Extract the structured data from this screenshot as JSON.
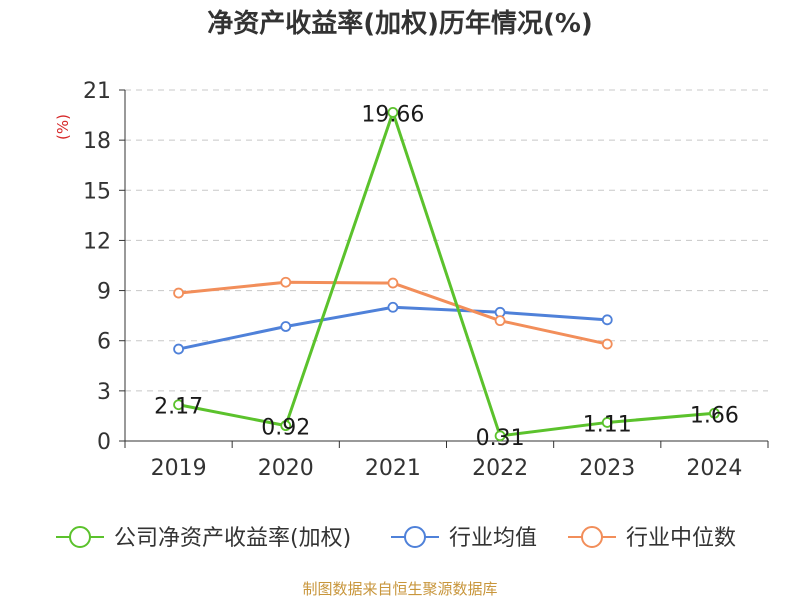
{
  "chart_data": {
    "type": "line",
    "title": "净资产收益率(加权)历年情况(%)",
    "ylabel": "(%)",
    "ylim": [
      0,
      21
    ],
    "yticks": [
      0,
      3,
      6,
      9,
      12,
      15,
      18,
      21
    ],
    "categories": [
      "2019",
      "2020",
      "2021",
      "2022",
      "2023",
      "2024"
    ],
    "grid": true,
    "legend_position": "bottom",
    "series": [
      {
        "name": "公司净资产收益率(加权)",
        "color": "#5bc22c",
        "values": [
          2.17,
          0.92,
          19.66,
          0.31,
          1.11,
          1.66
        ],
        "labels": [
          "2.17",
          "0.92",
          "19.66",
          "0.31",
          "1.11",
          "1.66"
        ]
      },
      {
        "name": "行业均值",
        "color": "#4f81d9",
        "values": [
          5.5,
          6.85,
          8.0,
          7.7,
          7.25,
          null
        ]
      },
      {
        "name": "行业中位数",
        "color": "#f28e5a",
        "values": [
          8.85,
          9.5,
          9.45,
          7.2,
          5.8,
          null
        ]
      }
    ]
  },
  "footer": {
    "source": "制图数据来自恒生聚源数据库"
  }
}
